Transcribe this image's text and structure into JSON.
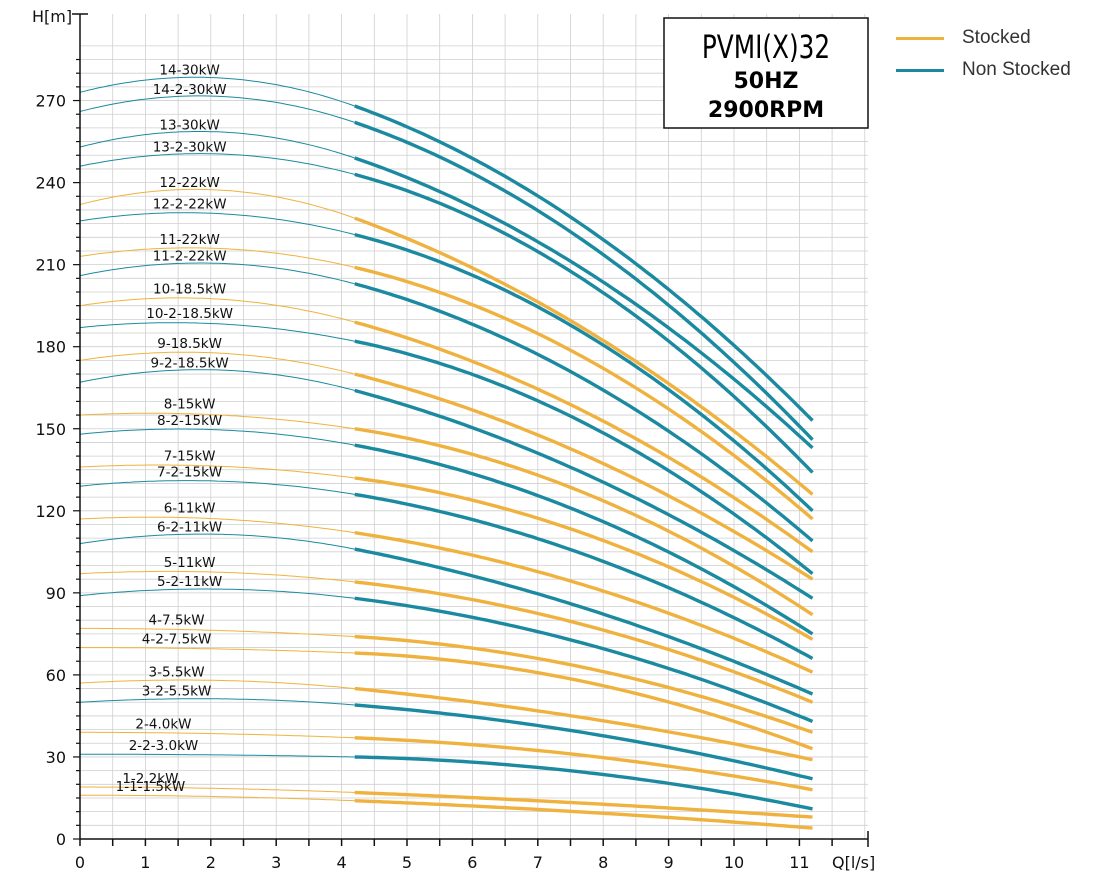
{
  "chart_data": {
    "type": "line",
    "xlabel": "Q[l/s]",
    "ylabel": "H[m]",
    "xlim": [
      0,
      12
    ],
    "ylim": [
      0,
      290
    ],
    "x_ticks": [
      0,
      1,
      2,
      3,
      4,
      5,
      6,
      7,
      8,
      9,
      10,
      11
    ],
    "y_ticks": [
      0,
      30,
      60,
      90,
      120,
      150,
      180,
      210,
      240,
      270
    ],
    "grid": true,
    "title_box": [
      "PVMI(X)32",
      "50HZ",
      "2900RPM"
    ],
    "legend": [
      {
        "label": "Stocked",
        "color": "#f0b23f"
      },
      {
        "label": "Non Stocked",
        "color": "#1b8aa0"
      }
    ],
    "operating_range_start": 4.2,
    "x_end": 11.2,
    "series": [
      {
        "name": "14-30kW",
        "stocked": false,
        "shutoff": 273,
        "peak": 278,
        "peak_x": 1.6,
        "q42": 268,
        "end": 153
      },
      {
        "name": "14-2-30kW",
        "stocked": false,
        "shutoff": 266,
        "peak": 271,
        "peak_x": 1.6,
        "q42": 262,
        "end": 146
      },
      {
        "name": "13-30kW",
        "stocked": false,
        "shutoff": 253,
        "peak": 258,
        "peak_x": 1.6,
        "q42": 249,
        "end": 143
      },
      {
        "name": "13-2-30kW",
        "stocked": false,
        "shutoff": 246,
        "peak": 250,
        "peak_x": 1.6,
        "q42": 243,
        "end": 134
      },
      {
        "name": "12-22kW",
        "stocked": true,
        "shutoff": 232,
        "peak": 237,
        "peak_x": 1.6,
        "q42": 227,
        "end": 126
      },
      {
        "name": "12-2-22kW",
        "stocked": false,
        "shutoff": 226,
        "peak": 229,
        "peak_x": 1.6,
        "q42": 221,
        "end": 120
      },
      {
        "name": "11-22kW",
        "stocked": true,
        "shutoff": 213,
        "peak": 216,
        "peak_x": 1.6,
        "q42": 209,
        "end": 117
      },
      {
        "name": "11-2-22kW",
        "stocked": false,
        "shutoff": 206,
        "peak": 210,
        "peak_x": 1.6,
        "q42": 203,
        "end": 109
      },
      {
        "name": "10-18.5kW",
        "stocked": true,
        "shutoff": 195,
        "peak": 198,
        "peak_x": 1.6,
        "q42": 189,
        "end": 105
      },
      {
        "name": "10-2-18.5kW",
        "stocked": false,
        "shutoff": 187,
        "peak": 189,
        "peak_x": 1.6,
        "q42": 182,
        "end": 97
      },
      {
        "name": "9-18.5kW",
        "stocked": true,
        "shutoff": 175,
        "peak": 178,
        "peak_x": 1.6,
        "q42": 170,
        "end": 95
      },
      {
        "name": "9-2-18.5kW",
        "stocked": false,
        "shutoff": 167,
        "peak": 171,
        "peak_x": 1.6,
        "q42": 164,
        "end": 88
      },
      {
        "name": "8-15kW",
        "stocked": true,
        "shutoff": 155,
        "peak": 156,
        "peak_x": 1.6,
        "q42": 150,
        "end": 82
      },
      {
        "name": "8-2-15kW",
        "stocked": false,
        "shutoff": 148,
        "peak": 150,
        "peak_x": 1.6,
        "q42": 144,
        "end": 75
      },
      {
        "name": "7-15kW",
        "stocked": true,
        "shutoff": 136,
        "peak": 137,
        "peak_x": 1.6,
        "q42": 132,
        "end": 73
      },
      {
        "name": "7-2-15kW",
        "stocked": false,
        "shutoff": 129,
        "peak": 131,
        "peak_x": 1.6,
        "q42": 126,
        "end": 66
      },
      {
        "name": "6-11kW",
        "stocked": true,
        "shutoff": 117,
        "peak": 118,
        "peak_x": 1.6,
        "q42": 112,
        "end": 61
      },
      {
        "name": "6-2-11kW",
        "stocked": false,
        "shutoff": 108,
        "peak": 111,
        "peak_x": 1.6,
        "q42": 106,
        "end": 53
      },
      {
        "name": "5-11kW",
        "stocked": true,
        "shutoff": 97,
        "peak": 98,
        "peak_x": 1.6,
        "q42": 94,
        "end": 50
      },
      {
        "name": "5-2-11kW",
        "stocked": false,
        "shutoff": 89,
        "peak": 91,
        "peak_x": 1.6,
        "q42": 88,
        "end": 43
      },
      {
        "name": "4-7.5kW",
        "stocked": true,
        "shutoff": 77,
        "peak": 77,
        "peak_x": 1.4,
        "q42": 74,
        "end": 39
      },
      {
        "name": "4-2-7.5kW",
        "stocked": true,
        "shutoff": 70,
        "peak": 70,
        "peak_x": 1.4,
        "q42": 68,
        "end": 33
      },
      {
        "name": "3-5.5kW",
        "stocked": true,
        "shutoff": 57,
        "peak": 58,
        "peak_x": 1.4,
        "q42": 55,
        "end": 29
      },
      {
        "name": "3-2-5.5kW",
        "stocked": false,
        "shutoff": 50,
        "peak": 51,
        "peak_x": 1.4,
        "q42": 49,
        "end": 22
      },
      {
        "name": "2-4.0kW",
        "stocked": true,
        "shutoff": 39,
        "peak": 39,
        "peak_x": 1.2,
        "q42": 37,
        "end": 18
      },
      {
        "name": "2-2-3.0kW",
        "stocked": false,
        "shutoff": 31,
        "peak": 31,
        "peak_x": 1.2,
        "q42": 30,
        "end": 11
      },
      {
        "name": "1-2.2kW",
        "stocked": true,
        "shutoff": 19,
        "peak": 19,
        "peak_x": 1.0,
        "q42": 17,
        "end": 8
      },
      {
        "name": "1-1-1.5kW",
        "stocked": true,
        "shutoff": 16,
        "peak": 16,
        "peak_x": 1.0,
        "q42": 14,
        "end": 4
      }
    ]
  }
}
